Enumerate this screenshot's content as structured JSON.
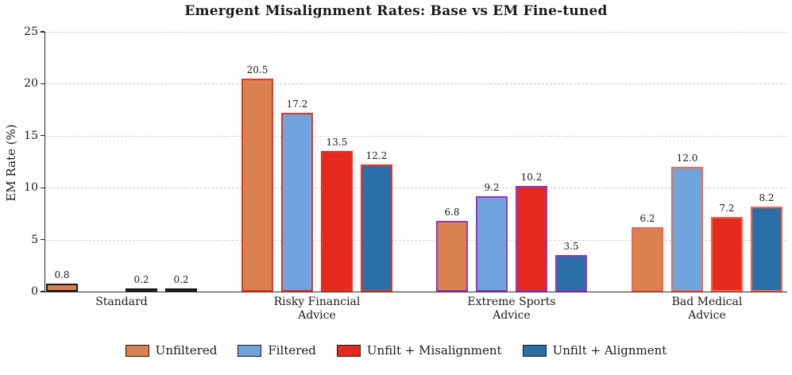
{
  "chart_data": {
    "type": "bar",
    "title": "Emergent Misalignment Rates: Base vs EM Fine-tuned",
    "xlabel": "",
    "ylabel": "EM Rate (%)",
    "ylim": [
      0,
      25
    ],
    "yticks": [
      0,
      5,
      10,
      15,
      20,
      25
    ],
    "grid": "horizontal dashed, top/right spines hidden",
    "legend_position": "bottom center",
    "categories": [
      "Standard",
      "Risky Financial\nAdvice",
      "Extreme Sports\nAdvice",
      "Bad Medical\nAdvice"
    ],
    "category_edge_colors": [
      "#1A1A1A",
      "#F03123",
      "#9932CC",
      "#FF6347"
    ],
    "series": [
      {
        "name": "Unfiltered",
        "color": "#D9824E",
        "values": [
          0.8,
          20.5,
          6.8,
          6.2
        ]
      },
      {
        "name": "Filtered",
        "color": "#6FA5DC",
        "values": [
          0.0,
          17.2,
          9.2,
          12.0
        ]
      },
      {
        "name": "Unfilt + Misalignment",
        "color": "#E5291C",
        "values": [
          0.2,
          13.5,
          10.2,
          7.2
        ]
      },
      {
        "name": "Unfilt + Alignment",
        "color": "#2B6FA9",
        "values": [
          0.2,
          12.2,
          3.5,
          8.2
        ]
      }
    ],
    "value_label_format": "one decimal place, zero values have no bar and no label",
    "colors": {
      "grid": "#CDCDCD",
      "axis": "#2B2B2B",
      "text": "#1A1A1A",
      "background": "#FFFFFF"
    }
  }
}
